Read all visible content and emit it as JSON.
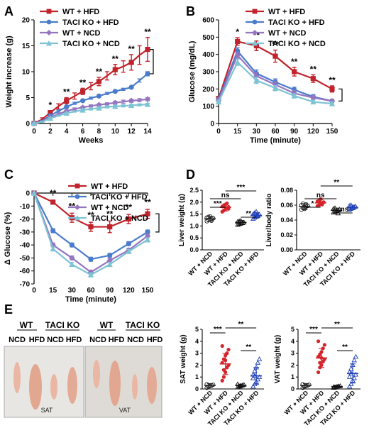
{
  "panels": {
    "A": "A",
    "B": "B",
    "C": "C",
    "D": "D",
    "E": "E"
  },
  "colors": {
    "wt_hfd": "#c0232b",
    "taci_hfd": "#4a7ccc",
    "wt_ncd": "#9575bf",
    "taci_ncd": "#7ec3d4",
    "d_wt_ncd": "#222222",
    "d_wt_hfd": "#d4252c",
    "d_taci_ncd": "#111111",
    "d_taci_hfd": "#1f3fb5"
  },
  "chart_data": [
    {
      "id": "A",
      "type": "line",
      "xlabel": "Weeks",
      "ylabel": "Weight increase (g)",
      "xlim": [
        0,
        14
      ],
      "ylim": [
        0,
        20
      ],
      "xticks": [
        0,
        2,
        4,
        6,
        8,
        10,
        12,
        14
      ],
      "yticks": [
        0,
        5,
        10,
        15,
        20
      ],
      "legend": "top-left",
      "x": [
        0,
        1,
        2,
        3,
        4,
        5,
        6,
        7,
        8,
        9,
        10,
        11,
        12,
        13,
        14
      ],
      "series": [
        {
          "name": "WT + HFD",
          "marker": "square",
          "color": "#c0232b",
          "values": [
            0,
            0.8,
            2.1,
            3.3,
            4.4,
            5.3,
            6.2,
            7.2,
            8.1,
            9.2,
            10.4,
            11.0,
            11.8,
            13.2,
            14.3
          ],
          "err": [
            0.2,
            0.3,
            0.4,
            0.5,
            0.6,
            0.6,
            0.6,
            0.7,
            0.8,
            0.8,
            1.0,
            1.1,
            1.5,
            1.8,
            2.3
          ]
        },
        {
          "name": "TACI KO + HFD",
          "marker": "circle",
          "color": "#4a7ccc",
          "values": [
            0,
            0.5,
            1.5,
            2.4,
            3.2,
            3.9,
            4.4,
            4.9,
            5.3,
            5.8,
            6.2,
            6.6,
            7.0,
            8.3,
            9.6
          ],
          "err": [
            0.1,
            0.1,
            0.2,
            0.2,
            0.2,
            0.2,
            0.2,
            0.2,
            0.2,
            0.2,
            0.2,
            0.2,
            0.2,
            0.3,
            0.4
          ]
        },
        {
          "name": "WT + NCD",
          "marker": "diamond",
          "color": "#9575bf",
          "values": [
            0,
            0.4,
            1.2,
            1.8,
            2.4,
            2.8,
            3.1,
            3.4,
            3.6,
            3.8,
            4.0,
            4.2,
            4.4,
            4.5,
            4.7
          ],
          "err": [
            0.1,
            0.1,
            0.1,
            0.2,
            0.2,
            0.2,
            0.2,
            0.2,
            0.2,
            0.2,
            0.3,
            0.3,
            0.3,
            0.3,
            0.3
          ]
        },
        {
          "name": "TACI KO + NCD",
          "marker": "triangle",
          "color": "#7ec3d4",
          "values": [
            0,
            0.3,
            1.0,
            1.5,
            2.0,
            2.3,
            2.6,
            2.8,
            3.0,
            3.2,
            3.3,
            3.4,
            3.5,
            3.6,
            3.7
          ],
          "err": [
            0.1,
            0.1,
            0.1,
            0.1,
            0.1,
            0.1,
            0.2,
            0.2,
            0.2,
            0.2,
            0.2,
            0.2,
            0.2,
            0.2,
            0.2
          ]
        }
      ],
      "annotations": [
        {
          "x": 2,
          "text": "*"
        },
        {
          "x": 4,
          "text": "**"
        },
        {
          "x": 6,
          "text": "**"
        },
        {
          "x": 8,
          "text": "**"
        },
        {
          "x": 10,
          "text": "**"
        },
        {
          "x": 12,
          "text": "**"
        },
        {
          "x": 14,
          "text": "**"
        }
      ]
    },
    {
      "id": "B",
      "type": "line",
      "xlabel": "Time (minute)",
      "ylabel": "Glucose (mg/dL)",
      "ylim": [
        0,
        600
      ],
      "yticks": [
        0,
        100,
        200,
        300,
        400,
        500,
        600
      ],
      "categories": [
        "0",
        "15",
        "30",
        "60",
        "90",
        "120",
        "150"
      ],
      "legend": "top-right",
      "series": [
        {
          "name": "WT + HFD",
          "marker": "square",
          "color": "#c0232b",
          "values": [
            145,
            475,
            450,
            390,
            300,
            260,
            200
          ],
          "err": [
            10,
            22,
            28,
            35,
            25,
            22,
            18
          ]
        },
        {
          "name": "TACI KO + HFD",
          "marker": "circle",
          "color": "#4a7ccc",
          "values": [
            140,
            420,
            290,
            240,
            195,
            155,
            130
          ],
          "err": [
            8,
            18,
            20,
            18,
            15,
            12,
            10
          ]
        },
        {
          "name": "WT + NCD",
          "marker": "diamond",
          "color": "#9575bf",
          "values": [
            135,
            395,
            275,
            225,
            175,
            150,
            130
          ],
          "err": [
            8,
            18,
            20,
            18,
            15,
            12,
            10
          ]
        },
        {
          "name": "TACI KO + NCD",
          "marker": "triangle",
          "color": "#7ec3d4",
          "values": [
            125,
            355,
            250,
            205,
            160,
            125,
            115
          ],
          "err": [
            8,
            18,
            18,
            15,
            12,
            10,
            10
          ]
        }
      ],
      "annotations": [
        {
          "x": "15",
          "text": "*"
        },
        {
          "x": "30",
          "text": "**"
        },
        {
          "x": "60",
          "text": "**"
        },
        {
          "x": "90",
          "text": "**"
        },
        {
          "x": "120",
          "text": "**"
        },
        {
          "x": "150",
          "text": "**"
        }
      ]
    },
    {
      "id": "C",
      "type": "line",
      "xlabel": "Time (minute)",
      "ylabel": "Δ Glucose (%)",
      "ylim": [
        -70,
        0
      ],
      "yticks": [
        0,
        -10,
        -20,
        -30,
        -40,
        -50,
        -60,
        -70
      ],
      "categories": [
        "0",
        "15",
        "30",
        "60",
        "90",
        "120",
        "150"
      ],
      "legend": "top-right",
      "series": [
        {
          "name": "WT + HFD",
          "marker": "square",
          "color": "#c0232b",
          "values": [
            0,
            -7,
            -19,
            -26,
            -26,
            -20,
            -16
          ],
          "err": [
            0,
            1.5,
            3.5,
            3.5,
            4.5,
            3.5,
            3.5
          ]
        },
        {
          "name": "TACI KO + HFD",
          "marker": "circle",
          "color": "#4a7ccc",
          "values": [
            0,
            -29,
            -40,
            -51,
            -48,
            -39,
            -30
          ],
          "err": [
            0,
            1.5,
            1.5,
            1.5,
            1.5,
            1.5,
            1.5
          ]
        },
        {
          "name": "WT + NCD",
          "marker": "diamond",
          "color": "#9575bf",
          "values": [
            0,
            -40,
            -50,
            -61,
            -52,
            -44,
            -33
          ],
          "err": [
            0,
            1.5,
            1.5,
            1.5,
            1.5,
            1.5,
            1.5
          ]
        },
        {
          "name": "TACI KO + NCD",
          "marker": "triangle",
          "color": "#7ec3d4",
          "values": [
            0,
            -43,
            -55,
            -63,
            -55,
            -45,
            -36
          ],
          "err": [
            0,
            1.5,
            1.5,
            1.5,
            1.5,
            1.5,
            1.5
          ]
        }
      ],
      "annotations": [
        {
          "x": "15",
          "text": "**"
        },
        {
          "x": "30",
          "text": "**"
        },
        {
          "x": "60",
          "text": "**"
        },
        {
          "x": "90",
          "text": "**"
        },
        {
          "x": "120",
          "text": "**"
        },
        {
          "x": "150",
          "text": "**"
        }
      ]
    },
    {
      "id": "D-liver",
      "type": "scatter",
      "ylabel": "Liver weight (g)",
      "ylim": [
        0,
        2.5
      ],
      "yticks": [
        "0.0",
        "0.5",
        "1.0",
        "1.5",
        "2.0",
        "2.5"
      ],
      "categories": [
        "WT + NCD",
        "WT + HFD",
        "TACI KO + NCD",
        "TACI KO + HFD"
      ],
      "means": [
        1.3,
        1.78,
        1.15,
        1.45
      ],
      "sd": [
        0.1,
        0.15,
        0.08,
        0.12
      ],
      "points": [
        [
          1.2,
          1.25,
          1.28,
          1.3,
          1.32,
          1.35,
          1.38,
          1.4,
          1.22,
          1.33
        ],
        [
          1.6,
          1.65,
          1.7,
          1.75,
          1.8,
          1.82,
          1.85,
          1.9,
          1.95,
          1.72
        ],
        [
          1.05,
          1.08,
          1.1,
          1.12,
          1.15,
          1.18,
          1.2,
          1.22,
          1.13
        ],
        [
          1.3,
          1.35,
          1.4,
          1.45,
          1.48,
          1.5,
          1.55,
          1.6,
          1.42
        ]
      ],
      "comparisons": [
        {
          "from": 0,
          "to": 1,
          "text": "***"
        },
        {
          "from": 0,
          "to": 2,
          "text": "ns"
        },
        {
          "from": 1,
          "to": 3,
          "text": "***"
        },
        {
          "from": 2,
          "to": 3,
          "text": "**"
        }
      ]
    },
    {
      "id": "D-ratio",
      "type": "scatter",
      "ylabel": "Liver/body ratio",
      "ylim": [
        0,
        0.08
      ],
      "yticks": [
        "0.00",
        "0.02",
        "0.04",
        "0.06",
        "0.08"
      ],
      "categories": [
        "WT + NCD",
        "WT + HFD",
        "TACI KO + NCD",
        "TACI KO + HFD"
      ],
      "means": [
        0.058,
        0.063,
        0.053,
        0.057
      ],
      "sd": [
        0.004,
        0.004,
        0.003,
        0.003
      ],
      "points": [
        [
          0.054,
          0.056,
          0.057,
          0.058,
          0.059,
          0.06,
          0.062,
          0.055,
          0.061
        ],
        [
          0.059,
          0.06,
          0.062,
          0.063,
          0.064,
          0.065,
          0.066,
          0.068,
          0.061
        ],
        [
          0.05,
          0.051,
          0.052,
          0.053,
          0.054,
          0.055,
          0.056,
          0.052,
          0.049
        ],
        [
          0.054,
          0.055,
          0.056,
          0.057,
          0.058,
          0.059,
          0.06,
          0.057
        ]
      ],
      "comparisons": [
        {
          "from": 0,
          "to": 1,
          "text": "*"
        },
        {
          "from": 0,
          "to": 2,
          "text": "ns"
        },
        {
          "from": 1,
          "to": 3,
          "text": "**"
        },
        {
          "from": 2,
          "to": 3,
          "text": "ns"
        }
      ]
    },
    {
      "id": "E-sat",
      "type": "scatter",
      "ylabel": "SAT weight (g)",
      "ylim": [
        0,
        5
      ],
      "yticks": [
        "0",
        "1",
        "2",
        "3",
        "4",
        "5"
      ],
      "categories": [
        "WT + NCD",
        "WT + HFD",
        "TACI KO + NCD",
        "TACI KO + HFD"
      ],
      "means": [
        0.3,
        2.1,
        0.3,
        1.1
      ],
      "sd": [
        0.15,
        0.9,
        0.1,
        0.7
      ],
      "points": [
        [
          0.1,
          0.2,
          0.25,
          0.3,
          0.35,
          0.4,
          0.2,
          0.3
        ],
        [
          0.7,
          1.0,
          1.4,
          1.8,
          2.0,
          2.2,
          2.5,
          2.8,
          3.0,
          3.3,
          3.6,
          1.6,
          2.4
        ],
        [
          0.15,
          0.2,
          0.25,
          0.3,
          0.35,
          0.4,
          0.22,
          0.28
        ],
        [
          0.2,
          0.4,
          0.6,
          0.8,
          1.0,
          1.2,
          1.5,
          1.8,
          2.2,
          2.5,
          0.9,
          1.1
        ]
      ],
      "comparisons": [
        {
          "from": 0,
          "to": 1,
          "text": "***"
        },
        {
          "from": 1,
          "to": 3,
          "text": "**"
        },
        {
          "from": 2,
          "to": 3,
          "text": "**"
        }
      ]
    },
    {
      "id": "E-vat",
      "type": "scatter",
      "ylabel": "VAT weight (g)",
      "ylim": [
        0,
        5
      ],
      "yticks": [
        "0",
        "1",
        "2",
        "3",
        "4",
        "5"
      ],
      "categories": [
        "WT + NCD",
        "WT + HFD",
        "TACI KO + NCD",
        "TACI KO + HFD"
      ],
      "means": [
        0.3,
        2.6,
        0.2,
        1.3
      ],
      "sd": [
        0.15,
        0.8,
        0.1,
        0.8
      ],
      "points": [
        [
          0.1,
          0.2,
          0.25,
          0.3,
          0.35,
          0.4,
          0.2,
          0.3
        ],
        [
          1.4,
          1.8,
          2.0,
          2.3,
          2.5,
          2.7,
          2.9,
          3.1,
          3.4,
          3.7,
          4.0,
          2.2,
          2.6
        ],
        [
          0.1,
          0.15,
          0.2,
          0.22,
          0.25,
          0.18,
          0.12
        ],
        [
          0.2,
          0.4,
          0.7,
          0.9,
          1.2,
          1.4,
          1.7,
          2.0,
          2.4,
          2.7,
          1.0,
          1.3
        ]
      ],
      "comparisons": [
        {
          "from": 0,
          "to": 1,
          "text": "***"
        },
        {
          "from": 1,
          "to": 3,
          "text": "**"
        },
        {
          "from": 2,
          "to": 3,
          "text": "**"
        }
      ]
    }
  ],
  "photos": {
    "header_wt": "WT",
    "header_taci": "TACI KO",
    "ncd": "NCD",
    "hfd": "HFD",
    "left_caption": "SAT",
    "right_caption": "VAT"
  }
}
